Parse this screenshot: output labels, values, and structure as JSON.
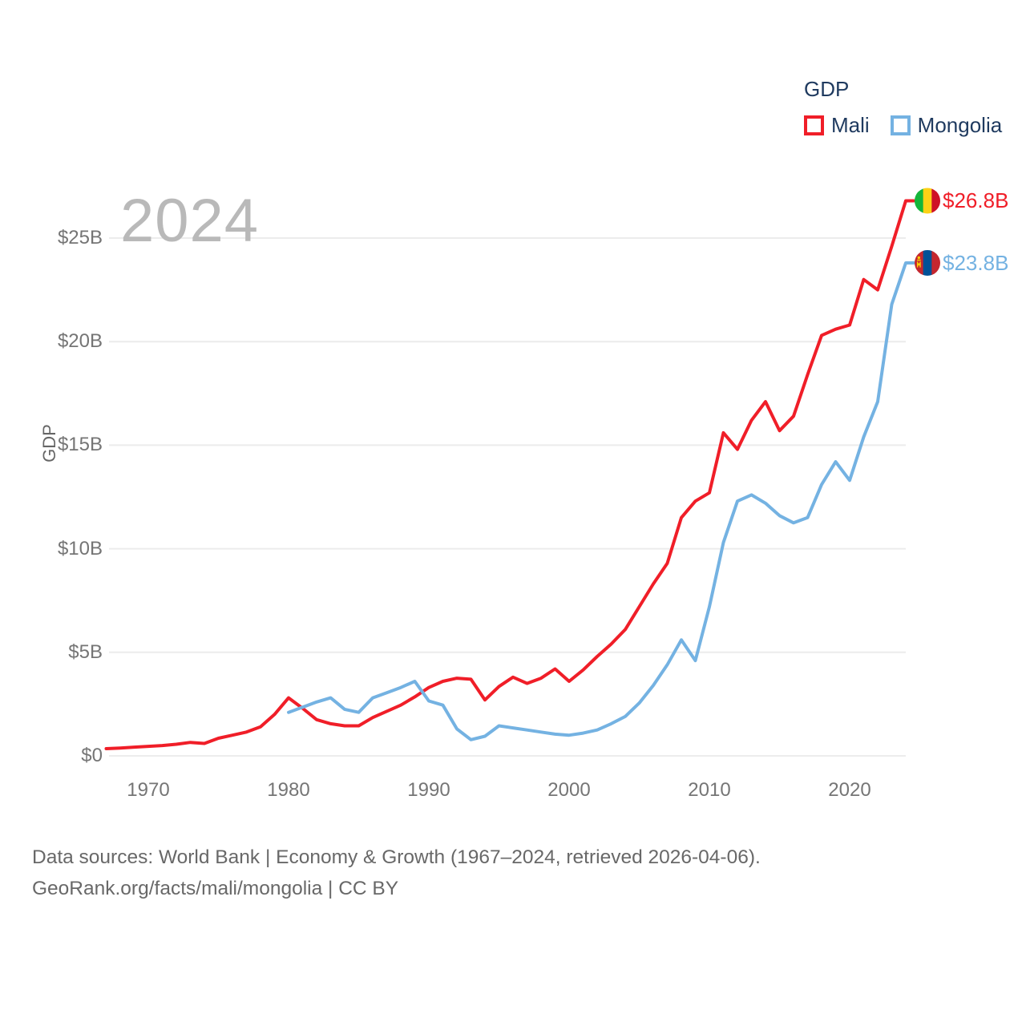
{
  "legend": {
    "title": "GDP",
    "items": [
      {
        "label": "Mali"
      },
      {
        "label": "Mongolia"
      }
    ]
  },
  "watermark": "2024",
  "y_axis_title": "GDP",
  "footer": {
    "line1": "Data sources: World Bank | Economy & Growth (1967–2024, retrieved 2026-04-06).",
    "line2": "GeoRank.org/facts/mali/mongolia | CC BY"
  },
  "colors": {
    "mali_red": "#f01e28",
    "mongolia_blue": "#74b2e2",
    "legend_text": "#1f3a5f",
    "tick_text": "#757575",
    "axis_title_text": "#666666",
    "watermark_text": "#b9b9b9",
    "footer_text": "#686868",
    "gridline": "#ececec",
    "background": "#ffffff"
  },
  "chart_data": {
    "type": "line",
    "title": "GDP",
    "ylabel": "GDP",
    "xlabel": "",
    "grid": "horizontal",
    "legend_position": "top-right",
    "xlim": [
      1967,
      2024
    ],
    "ylim": [
      0,
      27
    ],
    "x_ticks": [
      1970,
      1980,
      1990,
      2000,
      2010,
      2020
    ],
    "y_ticks": [
      {
        "value": 0,
        "label": "$0"
      },
      {
        "value": 5,
        "label": "$5B"
      },
      {
        "value": 10,
        "label": "$10B"
      },
      {
        "value": 15,
        "label": "$15B"
      },
      {
        "value": 20,
        "label": "$20B"
      },
      {
        "value": 25,
        "label": "$25B"
      }
    ],
    "units": "billions of USD",
    "series": [
      {
        "name": "Mali",
        "color": "#f01e28",
        "flag": "mali",
        "flag_colors": [
          "#14b53a",
          "#fcd116",
          "#ce1126"
        ],
        "start_year": 1967,
        "end_label": "$26.8B",
        "end_value": 26.8,
        "values": [
          0.35,
          0.38,
          0.42,
          0.46,
          0.5,
          0.56,
          0.65,
          0.6,
          0.85,
          1.0,
          1.15,
          1.4,
          2.0,
          2.8,
          2.3,
          1.75,
          1.55,
          1.45,
          1.45,
          1.85,
          2.15,
          2.45,
          2.85,
          3.3,
          3.6,
          3.75,
          3.7,
          2.7,
          3.35,
          3.8,
          3.5,
          3.75,
          4.2,
          3.6,
          4.15,
          4.8,
          5.4,
          6.1,
          7.2,
          8.3,
          9.3,
          11.5,
          12.3,
          12.7,
          15.6,
          14.8,
          16.2,
          17.1,
          15.7,
          16.4,
          18.4,
          20.3,
          20.6,
          20.8,
          23.0,
          22.5,
          24.6,
          26.8
        ]
      },
      {
        "name": "Mongolia",
        "color": "#74b2e2",
        "flag": "mongolia",
        "flag_colors": [
          "#c4272f",
          "#015197"
        ],
        "soyombo_color": "#f9cf02",
        "start_year": 1980,
        "end_label": "$23.8B",
        "end_value": 23.8,
        "values": [
          2.1,
          2.35,
          2.6,
          2.8,
          2.25,
          2.1,
          2.8,
          3.05,
          3.3,
          3.6,
          2.65,
          2.45,
          1.3,
          0.78,
          0.95,
          1.45,
          1.35,
          1.25,
          1.15,
          1.05,
          1.0,
          1.1,
          1.25,
          1.55,
          1.9,
          2.55,
          3.4,
          4.4,
          5.6,
          4.6,
          7.2,
          10.3,
          12.3,
          12.6,
          12.2,
          11.6,
          11.25,
          11.5,
          13.1,
          14.2,
          13.3,
          15.4,
          17.1,
          21.8,
          23.8
        ]
      }
    ]
  }
}
